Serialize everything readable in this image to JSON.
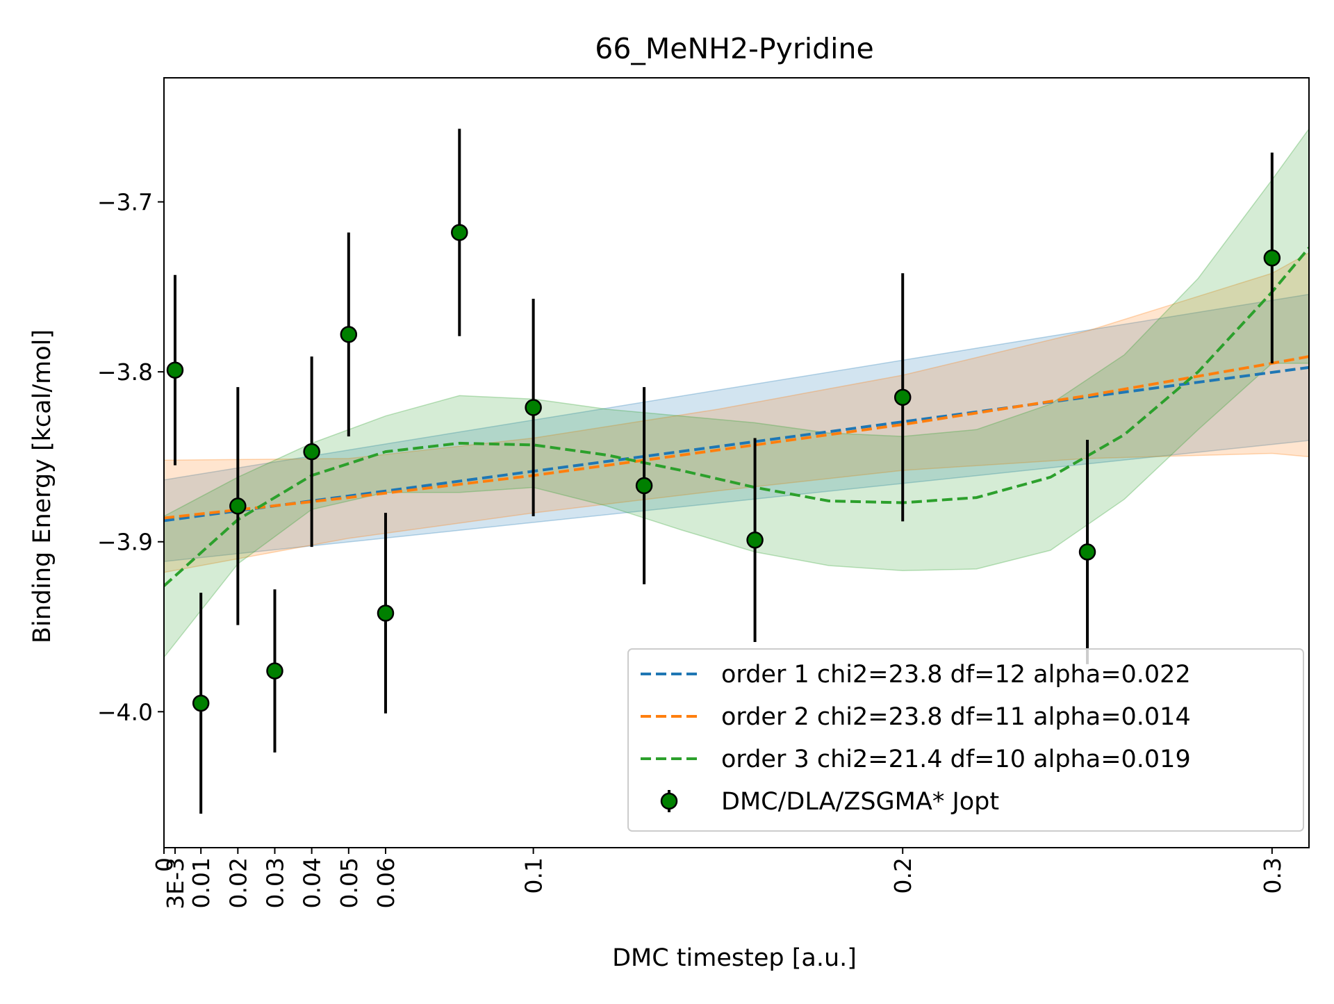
{
  "chart_data": {
    "type": "scatter",
    "title": "66_MeNH2-Pyridine",
    "xlabel": "DMC timestep [a.u.]",
    "ylabel": "Binding Energy [kcal/mol]",
    "xlim": [
      0,
      0.31
    ],
    "ylim": [
      -4.08,
      -3.627
    ],
    "grid": false,
    "legend_position": "lower-right",
    "x_ticks": [
      {
        "value": 0,
        "label": "0"
      },
      {
        "value": 0.003,
        "label": "3E-3"
      },
      {
        "value": 0.01,
        "label": "0.01"
      },
      {
        "value": 0.02,
        "label": "0.02"
      },
      {
        "value": 0.03,
        "label": "0.03"
      },
      {
        "value": 0.04,
        "label": "0.04"
      },
      {
        "value": 0.05,
        "label": "0.05"
      },
      {
        "value": 0.06,
        "label": "0.06"
      },
      {
        "value": 0.1,
        "label": "0.1"
      },
      {
        "value": 0.2,
        "label": "0.2"
      },
      {
        "value": 0.3,
        "label": "0.3"
      }
    ],
    "y_ticks": [
      {
        "value": -3.7,
        "label": "−3.7"
      },
      {
        "value": -3.8,
        "label": "−3.8"
      },
      {
        "value": -3.9,
        "label": "−3.9"
      },
      {
        "value": -4.0,
        "label": "−4.0"
      }
    ],
    "points": {
      "name": "DMC/DLA/ZSGMA* Jopt",
      "color": "#008000",
      "x": [
        0.003,
        0.01,
        0.02,
        0.03,
        0.04,
        0.05,
        0.06,
        0.08,
        0.1,
        0.13,
        0.16,
        0.2,
        0.25,
        0.3
      ],
      "y": [
        -3.799,
        -3.995,
        -3.879,
        -3.976,
        -3.847,
        -3.778,
        -3.942,
        -3.718,
        -3.821,
        -3.867,
        -3.899,
        -3.815,
        -3.906,
        -3.733
      ],
      "yerr": [
        0.056,
        0.065,
        0.07,
        0.048,
        0.056,
        0.06,
        0.059,
        0.061,
        0.064,
        0.058,
        0.06,
        0.073,
        0.066,
        0.062
      ]
    },
    "fits": [
      {
        "name": "order 1 chi2=23.8 df=12 alpha=0.022",
        "color": "#1f77b4",
        "x": [
          0,
          0.31
        ],
        "y": [
          -3.8876,
          -3.7974
        ],
        "band_color": "#1f77b4",
        "band_lower": [
          -3.9116,
          -3.8404
        ],
        "band_upper": [
          -3.8636,
          -3.7544
        ],
        "band_x": [
          0,
          0.31
        ]
      },
      {
        "name": "order 2 chi2=23.8 df=11 alpha=0.014",
        "color": "#ff7f0e",
        "x": [
          0,
          0.05,
          0.1,
          0.15,
          0.2,
          0.25,
          0.3,
          0.31
        ],
        "y": [
          -3.886,
          -3.874,
          -3.861,
          -3.846,
          -3.831,
          -3.814,
          -3.795,
          -3.791
        ],
        "band_color": "#ff7f0e",
        "band_x": [
          0,
          0.05,
          0.1,
          0.15,
          0.2,
          0.25,
          0.3,
          0.31
        ],
        "band_lower": [
          -3.918,
          -3.898,
          -3.883,
          -3.87,
          -3.858,
          -3.851,
          -3.848,
          -3.85
        ],
        "band_upper": [
          -3.852,
          -3.851,
          -3.839,
          -3.822,
          -3.802,
          -3.776,
          -3.742,
          -3.73
        ]
      },
      {
        "name": "order 3 chi2=21.4 df=10 alpha=0.019",
        "color": "#2ca02c",
        "x": [
          0,
          0.02,
          0.04,
          0.06,
          0.08,
          0.1,
          0.12,
          0.14,
          0.16,
          0.18,
          0.2,
          0.22,
          0.24,
          0.26,
          0.28,
          0.3,
          0.31
        ],
        "y": [
          -3.926,
          -3.887,
          -3.861,
          -3.847,
          -3.842,
          -3.843,
          -3.849,
          -3.858,
          -3.868,
          -3.876,
          -3.877,
          -3.874,
          -3.862,
          -3.837,
          -3.8,
          -3.753,
          -3.727
        ],
        "band_color": "#2ca02c",
        "band_x": [
          0,
          0.02,
          0.04,
          0.06,
          0.08,
          0.1,
          0.12,
          0.14,
          0.16,
          0.18,
          0.2,
          0.22,
          0.24,
          0.26,
          0.28,
          0.3,
          0.31
        ],
        "band_lower": [
          -3.968,
          -3.913,
          -3.881,
          -3.871,
          -3.871,
          -3.868,
          -3.879,
          -3.893,
          -3.906,
          -3.914,
          -3.917,
          -3.916,
          -3.905,
          -3.875,
          -3.834,
          -3.795,
          -3.795
        ],
        "band_upper": [
          -3.885,
          -3.862,
          -3.842,
          -3.826,
          -3.814,
          -3.816,
          -3.822,
          -3.826,
          -3.83,
          -3.836,
          -3.838,
          -3.834,
          -3.819,
          -3.79,
          -3.745,
          -3.687,
          -3.657
        ]
      }
    ]
  }
}
